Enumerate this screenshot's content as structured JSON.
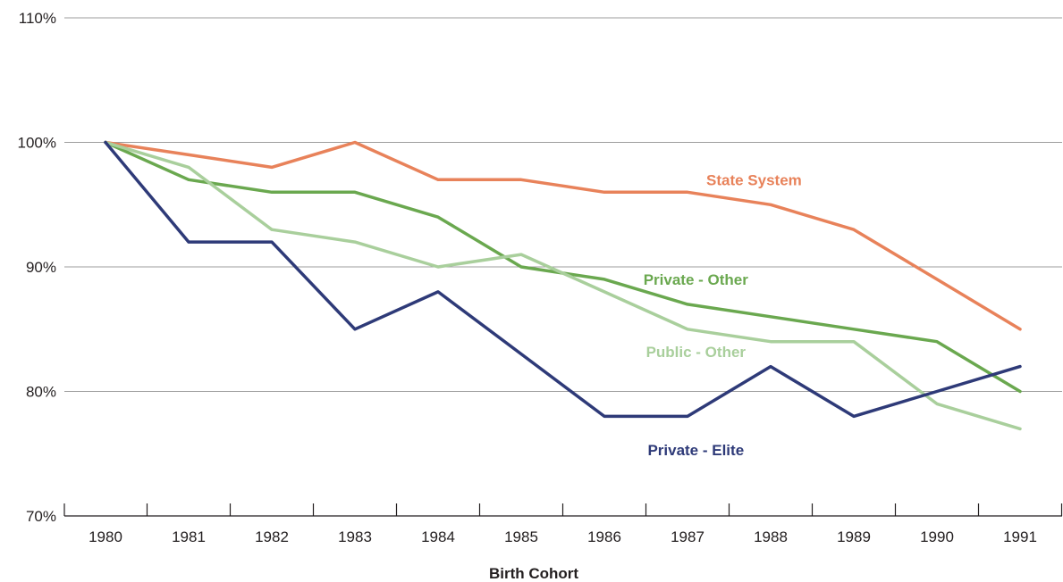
{
  "chart_data": {
    "type": "line",
    "title": "",
    "xlabel": "Birth Cohort",
    "ylabel": "",
    "x": [
      "1980",
      "1981",
      "1982",
      "1983",
      "1984",
      "1985",
      "1986",
      "1987",
      "1988",
      "1989",
      "1990",
      "1991"
    ],
    "ylim": [
      70,
      110
    ],
    "y_ticks": [
      {
        "value": 70,
        "label": "70%"
      },
      {
        "value": 80,
        "label": "80%"
      },
      {
        "value": 90,
        "label": "90%"
      },
      {
        "value": 100,
        "label": "100%"
      },
      {
        "value": 110,
        "label": "110%"
      }
    ],
    "grid": true,
    "series": [
      {
        "name": "State System",
        "color": "#e8825a",
        "values": [
          100,
          99,
          98,
          100,
          97,
          97,
          96,
          96,
          95,
          93,
          89,
          85
        ],
        "label_anchor_x": "1987.8",
        "label_anchor_y": 97
      },
      {
        "name": "Private - Other",
        "color": "#6aa84f",
        "values": [
          100,
          97,
          96,
          96,
          94,
          90,
          89,
          87,
          86,
          85,
          84,
          80
        ],
        "label_anchor_x": "1987.1",
        "label_anchor_y": 89
      },
      {
        "name": "Public - Other",
        "color": "#a9cf9c",
        "values": [
          100,
          98,
          93,
          92,
          90,
          91,
          88,
          85,
          84,
          84,
          79,
          77
        ],
        "label_anchor_x": "1987.1",
        "label_anchor_y": 83.2
      },
      {
        "name": "Private - Elite",
        "color": "#2e3a78",
        "values": [
          100,
          92,
          92,
          85,
          88,
          83,
          78,
          78,
          82,
          78,
          80,
          82
        ],
        "label_anchor_x": "1987.1",
        "label_anchor_y": 75.3
      }
    ]
  }
}
